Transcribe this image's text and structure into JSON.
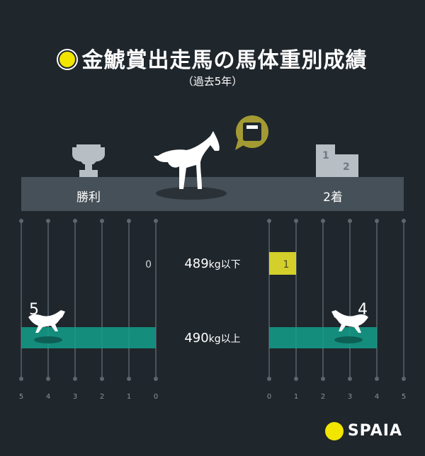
{
  "header": {
    "title": "金鯱賞出走馬の馬体重別成績",
    "subtitle": "（過去5年）"
  },
  "legend": {
    "left": "勝利",
    "right": "2着"
  },
  "colors": {
    "background": "#1f262c",
    "band": "#455058",
    "teal": "#13a08c",
    "yellow": "#e8e22a",
    "grid": "#4a535b"
  },
  "brand": "SPAIA",
  "chart_data": {
    "type": "bar",
    "categories": [
      "489kg以下",
      "490kg以上"
    ],
    "category_display": [
      {
        "num": "489",
        "unit": "kg以下"
      },
      {
        "num": "490",
        "unit": "kg以上"
      }
    ],
    "series": [
      {
        "name": "勝利",
        "values": [
          0,
          5
        ],
        "direction": "left"
      },
      {
        "name": "2着",
        "values": [
          1,
          4
        ],
        "direction": "right"
      }
    ],
    "xlim": [
      0,
      5
    ],
    "ticks": [
      "0",
      "1",
      "2",
      "3",
      "4",
      "5"
    ],
    "grid": true
  }
}
